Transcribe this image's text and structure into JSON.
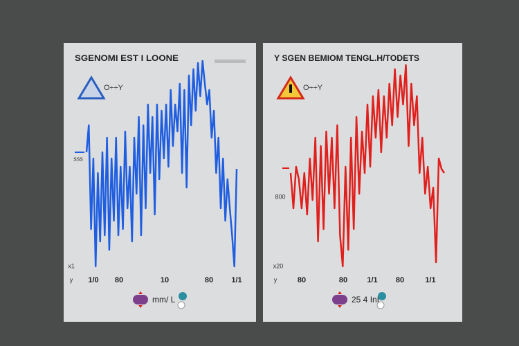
{
  "chart_data": [
    {
      "type": "line",
      "title": "SGENOMI EST I LOONE",
      "subtitle": "O÷÷Y",
      "icon": "triangle",
      "x_labels": [
        "1/0",
        "80",
        "10",
        "80",
        "1/1"
      ],
      "y_labels": [
        "sss",
        "x1",
        "y"
      ],
      "ylim": [
        0,
        100
      ],
      "series": [
        {
          "name": "mm/ L",
          "color": "#1f5ee0",
          "values": [
            55,
            68,
            18,
            52,
            0,
            45,
            12,
            55,
            15,
            62,
            8,
            52,
            22,
            62,
            15,
            48,
            18,
            65,
            28,
            48,
            12,
            62,
            35,
            72,
            15,
            68,
            28,
            78,
            45,
            72,
            25,
            78,
            42,
            75,
            52,
            78,
            48,
            85,
            58,
            78,
            65,
            88,
            45,
            85,
            38,
            92,
            68,
            95,
            75,
            98,
            82,
            99,
            88,
            78,
            85,
            62,
            75,
            45,
            62,
            28,
            52,
            22,
            42,
            28,
            15,
            0,
            47
          ]
        }
      ]
    },
    {
      "type": "line",
      "title": "Y SGEN BEMIOM TENGL.H/TODETS",
      "subtitle": "O÷÷Y",
      "icon": "warning",
      "x_labels": [
        "80",
        "80",
        "1/1",
        "80",
        "1/1"
      ],
      "y_labels": [
        "800",
        "x20",
        "y"
      ],
      "ylim": [
        0,
        100
      ],
      "series": [
        {
          "name": "25 4 InL",
          "color": "#e0201c",
          "values": [
            45,
            28,
            48,
            42,
            28,
            45,
            25,
            52,
            32,
            62,
            12,
            58,
            18,
            65,
            35,
            62,
            28,
            68,
            15,
            0,
            48,
            8,
            62,
            18,
            72,
            35,
            65,
            45,
            78,
            48,
            82,
            62,
            85,
            55,
            82,
            62,
            88,
            68,
            95,
            72,
            92,
            78,
            97,
            58,
            88,
            68,
            82,
            45,
            62,
            35,
            48,
            28,
            38,
            2,
            52,
            47,
            45
          ]
        }
      ]
    }
  ]
}
